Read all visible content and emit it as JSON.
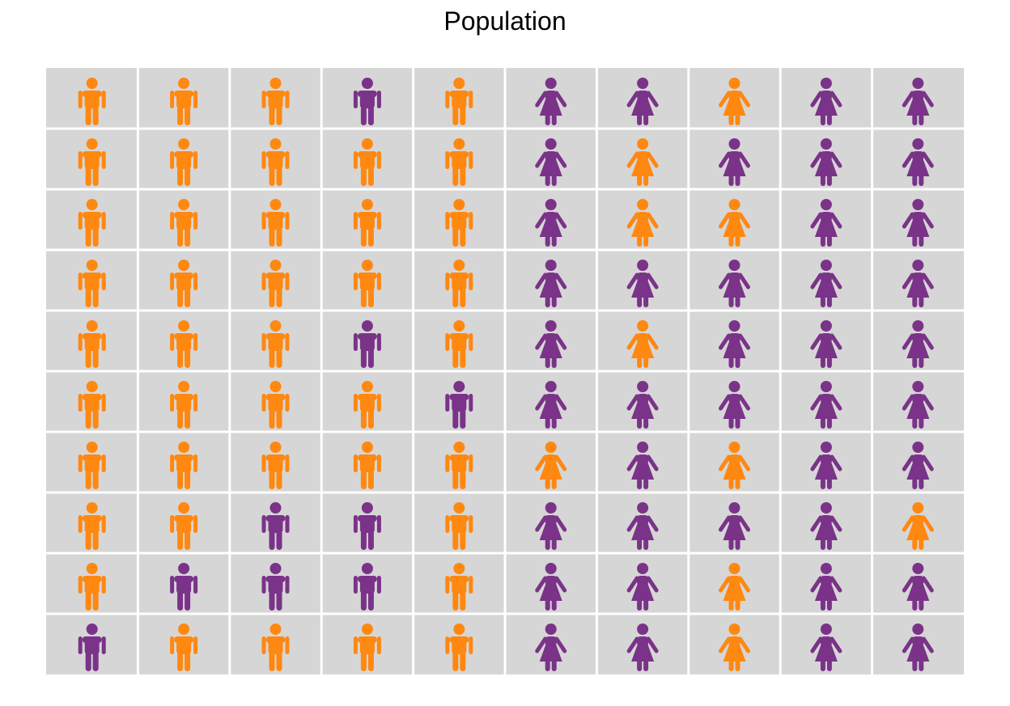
{
  "chart_data": {
    "type": "pictogram",
    "title": "Population",
    "colors": {
      "orange": "#ff8811",
      "purple": "#7a3388",
      "cell_background": "#d6d6d6",
      "grid_line": "#ffffff"
    },
    "icons": {
      "M": "male-icon",
      "F": "female-icon"
    },
    "grid": {
      "rows": 10,
      "cols": 10
    },
    "cells": [
      [
        [
          "M",
          "orange"
        ],
        [
          "M",
          "orange"
        ],
        [
          "M",
          "orange"
        ],
        [
          "M",
          "purple"
        ],
        [
          "M",
          "orange"
        ],
        [
          "F",
          "purple"
        ],
        [
          "F",
          "purple"
        ],
        [
          "F",
          "orange"
        ],
        [
          "F",
          "purple"
        ],
        [
          "F",
          "purple"
        ]
      ],
      [
        [
          "M",
          "orange"
        ],
        [
          "M",
          "orange"
        ],
        [
          "M",
          "orange"
        ],
        [
          "M",
          "orange"
        ],
        [
          "M",
          "orange"
        ],
        [
          "F",
          "purple"
        ],
        [
          "F",
          "orange"
        ],
        [
          "F",
          "purple"
        ],
        [
          "F",
          "purple"
        ],
        [
          "F",
          "purple"
        ]
      ],
      [
        [
          "M",
          "orange"
        ],
        [
          "M",
          "orange"
        ],
        [
          "M",
          "orange"
        ],
        [
          "M",
          "orange"
        ],
        [
          "M",
          "orange"
        ],
        [
          "F",
          "purple"
        ],
        [
          "F",
          "orange"
        ],
        [
          "F",
          "orange"
        ],
        [
          "F",
          "purple"
        ],
        [
          "F",
          "purple"
        ]
      ],
      [
        [
          "M",
          "orange"
        ],
        [
          "M",
          "orange"
        ],
        [
          "M",
          "orange"
        ],
        [
          "M",
          "orange"
        ],
        [
          "M",
          "orange"
        ],
        [
          "F",
          "purple"
        ],
        [
          "F",
          "purple"
        ],
        [
          "F",
          "purple"
        ],
        [
          "F",
          "purple"
        ],
        [
          "F",
          "purple"
        ]
      ],
      [
        [
          "M",
          "orange"
        ],
        [
          "M",
          "orange"
        ],
        [
          "M",
          "orange"
        ],
        [
          "M",
          "purple"
        ],
        [
          "M",
          "orange"
        ],
        [
          "F",
          "purple"
        ],
        [
          "F",
          "orange"
        ],
        [
          "F",
          "purple"
        ],
        [
          "F",
          "purple"
        ],
        [
          "F",
          "purple"
        ]
      ],
      [
        [
          "M",
          "orange"
        ],
        [
          "M",
          "orange"
        ],
        [
          "M",
          "orange"
        ],
        [
          "M",
          "orange"
        ],
        [
          "M",
          "purple"
        ],
        [
          "F",
          "purple"
        ],
        [
          "F",
          "purple"
        ],
        [
          "F",
          "purple"
        ],
        [
          "F",
          "purple"
        ],
        [
          "F",
          "purple"
        ]
      ],
      [
        [
          "M",
          "orange"
        ],
        [
          "M",
          "orange"
        ],
        [
          "M",
          "orange"
        ],
        [
          "M",
          "orange"
        ],
        [
          "M",
          "orange"
        ],
        [
          "F",
          "orange"
        ],
        [
          "F",
          "purple"
        ],
        [
          "F",
          "orange"
        ],
        [
          "F",
          "purple"
        ],
        [
          "F",
          "purple"
        ]
      ],
      [
        [
          "M",
          "orange"
        ],
        [
          "M",
          "orange"
        ],
        [
          "M",
          "purple"
        ],
        [
          "M",
          "purple"
        ],
        [
          "M",
          "orange"
        ],
        [
          "F",
          "purple"
        ],
        [
          "F",
          "purple"
        ],
        [
          "F",
          "purple"
        ],
        [
          "F",
          "purple"
        ],
        [
          "F",
          "orange"
        ]
      ],
      [
        [
          "M",
          "orange"
        ],
        [
          "M",
          "purple"
        ],
        [
          "M",
          "purple"
        ],
        [
          "M",
          "purple"
        ],
        [
          "M",
          "orange"
        ],
        [
          "F",
          "purple"
        ],
        [
          "F",
          "purple"
        ],
        [
          "F",
          "orange"
        ],
        [
          "F",
          "purple"
        ],
        [
          "F",
          "purple"
        ]
      ],
      [
        [
          "M",
          "purple"
        ],
        [
          "M",
          "orange"
        ],
        [
          "M",
          "orange"
        ],
        [
          "M",
          "orange"
        ],
        [
          "M",
          "orange"
        ],
        [
          "F",
          "purple"
        ],
        [
          "F",
          "purple"
        ],
        [
          "F",
          "orange"
        ],
        [
          "F",
          "purple"
        ],
        [
          "F",
          "purple"
        ]
      ]
    ]
  }
}
